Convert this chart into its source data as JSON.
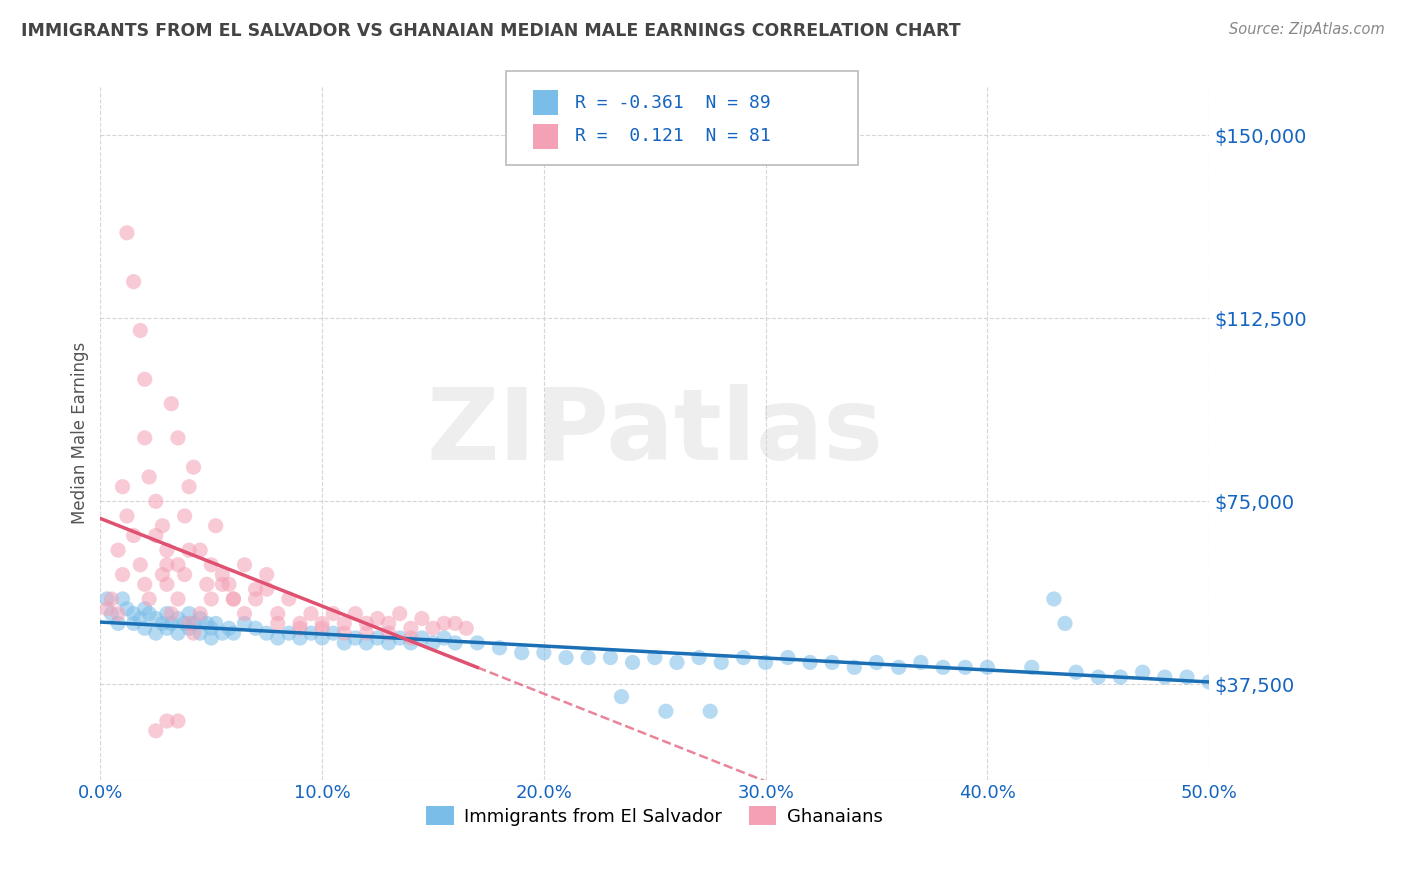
{
  "title": "IMMIGRANTS FROM EL SALVADOR VS GHANAIAN MEDIAN MALE EARNINGS CORRELATION CHART",
  "source": "Source: ZipAtlas.com",
  "ylabel": "Median Male Earnings",
  "watermark": "ZIPatlas",
  "xmin": 0.0,
  "xmax": 50.0,
  "ymin": 18000,
  "ymax": 160000,
  "yticks": [
    37500,
    75000,
    112500,
    150000
  ],
  "ytick_labels": [
    "$37,500",
    "$75,000",
    "$112,500",
    "$150,000"
  ],
  "xticks": [
    0.0,
    10.0,
    20.0,
    30.0,
    40.0,
    50.0
  ],
  "xtick_labels": [
    "0.0%",
    "10.0%",
    "20.0%",
    "30.0%",
    "40.0%",
    "50.0%"
  ],
  "series1_label": "Immigrants from El Salvador",
  "series1_color": "#7abde8",
  "series1_trend_color": "#1a6fb5",
  "series1_R": "-0.361",
  "series1_N": "89",
  "series2_label": "Ghanaians",
  "series2_color": "#f4a0b5",
  "series2_trend_color": "#e05070",
  "series2_R": "0.121",
  "series2_N": "81",
  "legend_R_color": "#1565c0",
  "title_color": "#444444",
  "axis_color": "#1565c0",
  "grid_color": "#cccccc",
  "background_color": "#ffffff",
  "series1_x": [
    0.3,
    0.5,
    0.8,
    1.0,
    1.2,
    1.5,
    1.5,
    1.8,
    2.0,
    2.0,
    2.2,
    2.5,
    2.5,
    2.8,
    3.0,
    3.0,
    3.2,
    3.5,
    3.5,
    3.8,
    4.0,
    4.0,
    4.2,
    4.5,
    4.5,
    4.8,
    5.0,
    5.0,
    5.2,
    5.5,
    5.8,
    6.0,
    6.5,
    7.0,
    7.5,
    8.0,
    8.5,
    9.0,
    9.5,
    10.0,
    10.5,
    11.0,
    11.5,
    12.0,
    12.5,
    13.0,
    13.5,
    14.0,
    14.5,
    15.0,
    15.5,
    16.0,
    17.0,
    18.0,
    19.0,
    20.0,
    21.0,
    22.0,
    23.0,
    24.0,
    25.0,
    26.0,
    27.0,
    28.0,
    29.0,
    30.0,
    31.0,
    32.0,
    33.0,
    34.0,
    35.0,
    36.0,
    37.0,
    38.0,
    39.0,
    40.0,
    42.0,
    44.0,
    45.0,
    46.0,
    47.0,
    48.0,
    49.0,
    50.0,
    23.5,
    25.5,
    27.5,
    43.0,
    43.5
  ],
  "series1_y": [
    55000,
    52000,
    50000,
    55000,
    53000,
    52000,
    50000,
    51000,
    53000,
    49000,
    52000,
    51000,
    48000,
    50000,
    52000,
    49000,
    50000,
    51000,
    48000,
    50000,
    52000,
    49000,
    50000,
    51000,
    48000,
    50000,
    49000,
    47000,
    50000,
    48000,
    49000,
    48000,
    50000,
    49000,
    48000,
    47000,
    48000,
    47000,
    48000,
    47000,
    48000,
    46000,
    47000,
    46000,
    47000,
    46000,
    47000,
    46000,
    47000,
    46000,
    47000,
    46000,
    46000,
    45000,
    44000,
    44000,
    43000,
    43000,
    43000,
    42000,
    43000,
    42000,
    43000,
    42000,
    43000,
    42000,
    43000,
    42000,
    42000,
    41000,
    42000,
    41000,
    42000,
    41000,
    41000,
    41000,
    41000,
    40000,
    39000,
    39000,
    40000,
    39000,
    39000,
    38000,
    35000,
    32000,
    32000,
    55000,
    50000
  ],
  "series2_x": [
    0.3,
    0.5,
    0.8,
    1.0,
    1.2,
    1.5,
    1.8,
    2.0,
    2.0,
    2.2,
    2.5,
    2.8,
    3.0,
    3.0,
    3.2,
    3.5,
    3.5,
    3.8,
    4.0,
    4.0,
    4.2,
    4.5,
    4.8,
    5.0,
    5.0,
    5.2,
    5.5,
    5.8,
    6.0,
    6.5,
    7.0,
    7.5,
    8.0,
    8.5,
    9.0,
    9.5,
    10.0,
    10.5,
    11.0,
    11.5,
    12.0,
    12.5,
    13.0,
    13.5,
    14.0,
    14.5,
    15.0,
    15.5,
    16.0,
    16.5,
    2.0,
    2.2,
    2.5,
    2.8,
    3.0,
    3.2,
    3.5,
    3.8,
    4.0,
    4.2,
    4.5,
    1.0,
    1.2,
    1.5,
    0.8,
    1.8,
    5.5,
    6.0,
    6.5,
    7.0,
    7.5,
    8.0,
    9.0,
    10.0,
    11.0,
    12.0,
    13.0,
    14.0,
    2.5,
    3.0,
    3.5
  ],
  "series2_y": [
    53000,
    55000,
    52000,
    60000,
    130000,
    120000,
    110000,
    100000,
    88000,
    80000,
    75000,
    70000,
    65000,
    58000,
    95000,
    88000,
    62000,
    72000,
    78000,
    65000,
    82000,
    65000,
    58000,
    62000,
    55000,
    70000,
    60000,
    58000,
    55000,
    62000,
    57000,
    60000,
    52000,
    55000,
    50000,
    52000,
    50000,
    52000,
    50000,
    52000,
    50000,
    51000,
    50000,
    52000,
    49000,
    51000,
    49000,
    50000,
    50000,
    49000,
    58000,
    55000,
    68000,
    60000,
    62000,
    52000,
    55000,
    60000,
    50000,
    48000,
    52000,
    78000,
    72000,
    68000,
    65000,
    62000,
    58000,
    55000,
    52000,
    55000,
    57000,
    50000,
    49000,
    49000,
    48000,
    48000,
    48000,
    47000,
    28000,
    30000,
    30000
  ]
}
